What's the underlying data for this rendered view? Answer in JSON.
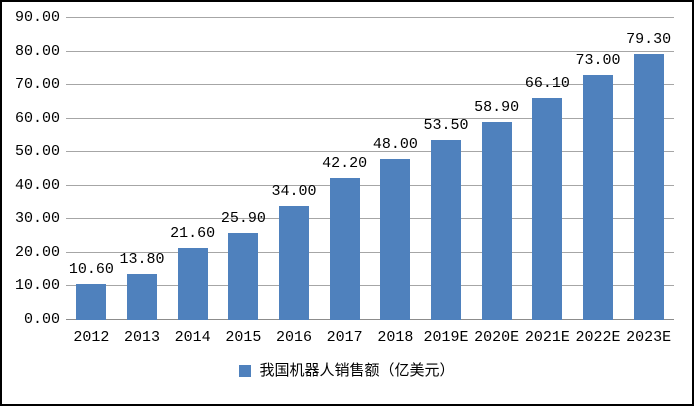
{
  "chart_data": {
    "type": "bar",
    "title": "",
    "xlabel": "",
    "ylabel": "",
    "categories": [
      "2012",
      "2013",
      "2014",
      "2015",
      "2016",
      "2017",
      "2018",
      "2019E",
      "2020E",
      "2021E",
      "2022E",
      "2023E"
    ],
    "values": [
      10.6,
      13.8,
      21.6,
      25.9,
      34.0,
      42.2,
      48.0,
      53.5,
      58.9,
      66.1,
      73.0,
      79.3
    ],
    "value_labels": [
      "10.60",
      "13.80",
      "21.60",
      "25.90",
      "34.00",
      "42.20",
      "48.00",
      "53.50",
      "58.90",
      "66.10",
      "73.00",
      "79.30"
    ],
    "legend": [
      "我国机器人销售额（亿美元）"
    ],
    "legend_position": "bottom",
    "ylim": [
      0,
      90
    ],
    "y_tick_step": 10,
    "y_tick_labels": [
      "0.00",
      "10.00",
      "20.00",
      "30.00",
      "40.00",
      "50.00",
      "60.00",
      "70.00",
      "80.00",
      "90.00"
    ],
    "grid": true,
    "colors": {
      "bar": "#4F81BD",
      "gridline": "#A6A6A6",
      "axis_line": "#8C8C8C",
      "border": "#000000",
      "background": "#FFFFFF",
      "text": "#000000"
    }
  }
}
